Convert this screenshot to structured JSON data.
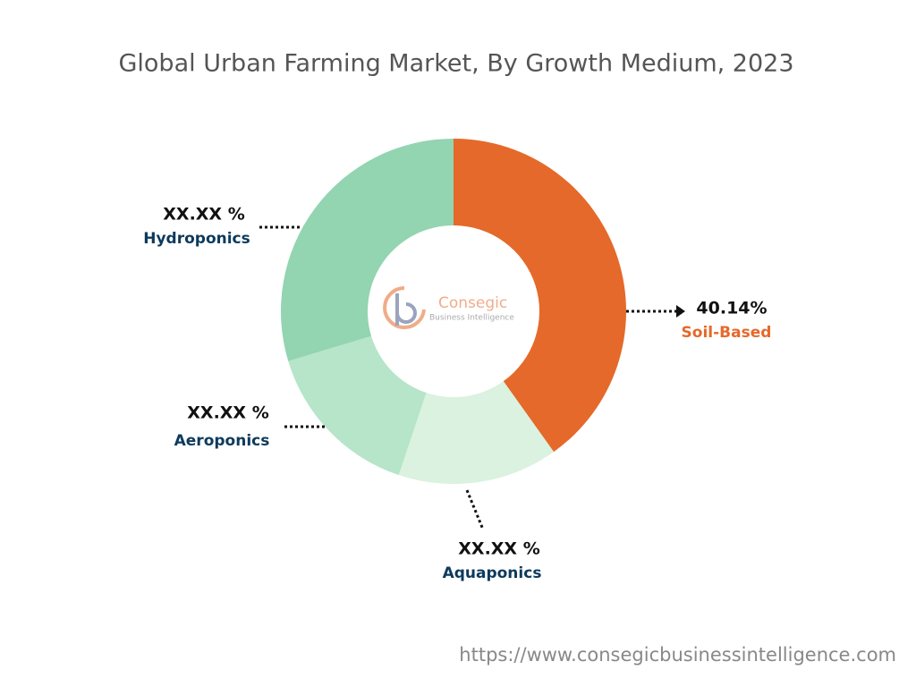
{
  "chart_data": {
    "type": "donut",
    "title": "Global Urban Farming Market, By Growth Medium, 2023",
    "categories": [
      "Soil-Based",
      "Aquaponics",
      "Aeroponics",
      "Hydroponics"
    ],
    "values": [
      40.14,
      15,
      15.2,
      29.66
    ],
    "value_labels": [
      "40.14%",
      "XX.XX %",
      "XX.XX %",
      "XX.XX %"
    ],
    "colors": [
      "#e5692a",
      "#daf2df",
      "#b6e5c9",
      "#93d4b1"
    ],
    "label_colors": [
      "#e5692a",
      "#0d3a5c",
      "#0d3a5c",
      "#0d3a5c"
    ],
    "watermark": {
      "name": "Consegic",
      "tagline": "Business Intelligence"
    },
    "source": "https://www.consegicbusinessintelligence.com"
  }
}
